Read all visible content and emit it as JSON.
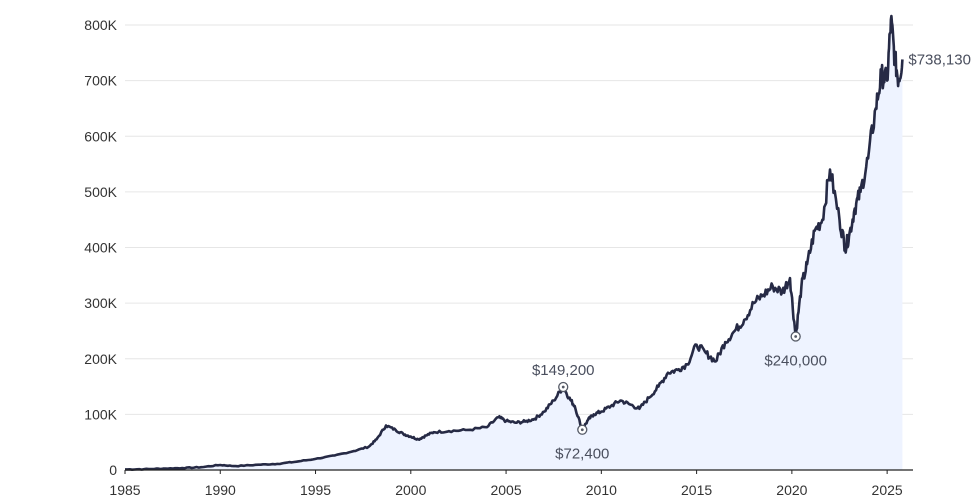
{
  "chart_data": {
    "type": "area",
    "title": "",
    "xlabel": "",
    "ylabel": "",
    "xlim": [
      1985,
      2026.2
    ],
    "ylim": [
      0,
      800000
    ],
    "grid": true,
    "colors": {
      "line": "#262a45",
      "fill": "#eef3ff",
      "marker": "#555a66"
    },
    "x_ticks": [
      {
        "value": 1985,
        "label": "1985"
      },
      {
        "value": 1990,
        "label": "1990"
      },
      {
        "value": 1995,
        "label": "1995"
      },
      {
        "value": 2000,
        "label": "2000"
      },
      {
        "value": 2005,
        "label": "2005"
      },
      {
        "value": 2010,
        "label": "2010"
      },
      {
        "value": 2015,
        "label": "2015"
      },
      {
        "value": 2020,
        "label": "2020"
      },
      {
        "value": 2025,
        "label": "2025"
      }
    ],
    "y_ticks": [
      {
        "value": 0,
        "label": "0"
      },
      {
        "value": 100000,
        "label": "100K"
      },
      {
        "value": 200000,
        "label": "200K"
      },
      {
        "value": 300000,
        "label": "300K"
      },
      {
        "value": 400000,
        "label": "400K"
      },
      {
        "value": 500000,
        "label": "500K"
      },
      {
        "value": 600000,
        "label": "600K"
      },
      {
        "value": 700000,
        "label": "700K"
      },
      {
        "value": 800000,
        "label": "800K"
      }
    ],
    "series": [
      {
        "x": [
          1985.0,
          1986.0,
          1987.0,
          1988.0,
          1989.0,
          1990.0,
          1990.8,
          1992.0,
          1993.0,
          1994.0,
          1995.0,
          1996.0,
          1997.0,
          1997.8,
          1998.2,
          1998.7,
          1999.2,
          1999.6,
          2000.0,
          2000.4,
          2000.8,
          2001.2,
          2002.0,
          2003.0,
          2004.0,
          2004.6,
          2005.0,
          2005.5,
          2006.0,
          2006.5,
          2007.0,
          2007.5,
          2008.0,
          2008.3,
          2008.6,
          2009.0,
          2009.3,
          2009.6,
          2010.0,
          2010.5,
          2011.0,
          2011.5,
          2012.0,
          2012.5,
          2013.0,
          2013.5,
          2014.0,
          2014.5,
          2015.0,
          2015.5,
          2016.0,
          2016.5,
          2017.0,
          2017.5,
          2018.0,
          2018.5,
          2019.0,
          2019.5,
          2019.9,
          2020.2,
          2020.5,
          2020.8,
          2021.2,
          2021.6,
          2022.0,
          2022.5,
          2022.8,
          2023.0,
          2023.3,
          2023.6,
          2024.0,
          2024.4,
          2024.7,
          2025.0,
          2025.2,
          2025.4,
          2025.6,
          2025.8
        ],
        "y": [
          1000,
          1500,
          2500,
          3500,
          5000,
          9000,
          7000,
          9500,
          11000,
          15000,
          20000,
          26000,
          34000,
          42000,
          55000,
          80000,
          72000,
          65000,
          60000,
          55000,
          62000,
          68000,
          70000,
          72000,
          77000,
          95000,
          88000,
          85000,
          87000,
          92000,
          105000,
          125000,
          149200,
          130000,
          115000,
          72400,
          90000,
          100000,
          105000,
          115000,
          125000,
          118000,
          110000,
          130000,
          150000,
          175000,
          180000,
          190000,
          225000,
          210000,
          195000,
          230000,
          250000,
          270000,
          300000,
          315000,
          330000,
          320000,
          345000,
          240000,
          330000,
          370000,
          430000,
          450000,
          540000,
          450000,
          400000,
          420000,
          470000,
          500000,
          560000,
          650000,
          710000,
          700000,
          810000,
          740000,
          700000,
          738130
        ]
      }
    ],
    "annotations": [
      {
        "x": 2008.0,
        "y": 149200,
        "label": "$149,200",
        "label_position": "above"
      },
      {
        "x": 2009.0,
        "y": 72400,
        "label": "$72,400",
        "label_position": "below"
      },
      {
        "x": 2020.2,
        "y": 240000,
        "label": "$240,000",
        "label_position": "below"
      },
      {
        "x": 2025.8,
        "y": 738130,
        "label": "$738,130",
        "label_position": "right",
        "marker": false
      }
    ]
  }
}
